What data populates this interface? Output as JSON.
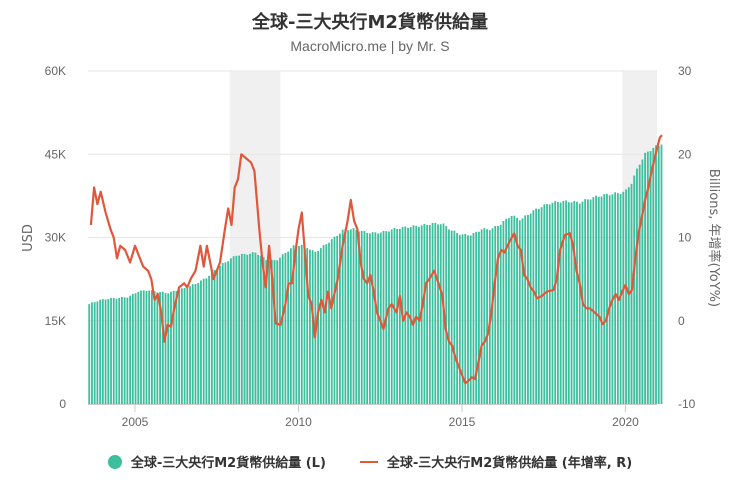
{
  "header": {
    "title": "全球-三大央行M2貨幣供給量",
    "subtitle": "MacroMicro.me | by Mr. S"
  },
  "axes": {
    "left_title": "USD",
    "right_title": "Billions, 年增率(YoY%)",
    "left_ticks": [
      "0",
      "15K",
      "30K",
      "45K",
      "60K"
    ],
    "right_ticks": [
      "-10",
      "0",
      "10",
      "20",
      "30"
    ],
    "x_ticks": [
      "2005",
      "2010",
      "2015",
      "2020"
    ]
  },
  "legend": {
    "items": [
      {
        "label": "全球-三大央行M2貨幣供給量 (L)",
        "color": "#3bbf9c",
        "icon": "circle-marker-icon"
      },
      {
        "label": "全球-三大央行M2貨幣供給量 (年增率, R)",
        "color": "#e0593b",
        "icon": "line-marker-icon"
      }
    ]
  },
  "colors": {
    "bar": "#3bbf9c",
    "line": "#e0573a",
    "recession_band": "#f0f0f0",
    "grid": "#e6e6e6"
  },
  "chart_data": {
    "type": "bar+line",
    "title": "全球-三大央行M2貨幣供給量",
    "subtitle": "MacroMicro.me | by Mr. S",
    "xlabel": "",
    "ylabel_left": "USD",
    "ylabel_right": "Billions, 年增率(YoY%)",
    "ylim_left": [
      0,
      60000
    ],
    "ylim_right": [
      -10,
      30
    ],
    "xlim": [
      2003.55,
      2021.2
    ],
    "grid": true,
    "legend_position": "bottom",
    "recession_bands": [
      [
        2007.9,
        2009.45
      ],
      [
        2019.9,
        2021.2
      ]
    ],
    "series": [
      {
        "name": "全球-三大央行M2貨幣供給量 (L)",
        "type": "bar",
        "axis": "left",
        "x": [
          2003.6,
          2003.9,
          2004.2,
          2004.5,
          2004.8,
          2005.1,
          2005.4,
          2005.7,
          2006.0,
          2006.3,
          2006.6,
          2006.9,
          2007.2,
          2007.5,
          2007.8,
          2008.1,
          2008.4,
          2008.7,
          2009.0,
          2009.3,
          2009.6,
          2009.9,
          2010.2,
          2010.5,
          2010.8,
          2011.1,
          2011.4,
          2011.7,
          2012.0,
          2012.3,
          2012.6,
          2012.9,
          2013.2,
          2013.5,
          2013.8,
          2014.1,
          2014.4,
          2014.7,
          2015.0,
          2015.3,
          2015.6,
          2015.9,
          2016.2,
          2016.5,
          2016.8,
          2017.1,
          2017.4,
          2017.7,
          2018.0,
          2018.3,
          2018.6,
          2018.9,
          2019.2,
          2019.5,
          2019.8,
          2020.0,
          2020.2,
          2020.4,
          2020.6,
          2020.8,
          2021.0,
          2021.1
        ],
        "values": [
          18000,
          18700,
          19000,
          19100,
          19300,
          20300,
          20500,
          20200,
          20000,
          20500,
          21000,
          21800,
          22800,
          24500,
          25700,
          26800,
          27000,
          27300,
          26000,
          25800,
          27200,
          28700,
          28500,
          27300,
          28600,
          30000,
          31500,
          31500,
          31000,
          30800,
          31000,
          31500,
          31800,
          32000,
          32200,
          32500,
          32500,
          31200,
          30500,
          30500,
          31500,
          31500,
          32500,
          34000,
          33200,
          34500,
          35500,
          36200,
          36500,
          36500,
          36300,
          37000,
          37500,
          37800,
          38000,
          38300,
          40000,
          43000,
          45000,
          46000,
          46500,
          47000
        ]
      },
      {
        "name": "全球-三大央行M2貨幣供給量 (年增率, R)",
        "type": "line",
        "axis": "right",
        "x": [
          2003.65,
          2003.75,
          2003.85,
          2003.95,
          2004.1,
          2004.25,
          2004.35,
          2004.45,
          2004.55,
          2004.7,
          2004.85,
          2005.0,
          2005.1,
          2005.25,
          2005.4,
          2005.5,
          2005.6,
          2005.7,
          2005.8,
          2005.9,
          2006.0,
          2006.1,
          2006.2,
          2006.35,
          2006.5,
          2006.6,
          2006.7,
          2006.85,
          2007.0,
          2007.1,
          2007.2,
          2007.3,
          2007.4,
          2007.5,
          2007.6,
          2007.75,
          2007.85,
          2007.95,
          2008.05,
          2008.15,
          2008.25,
          2008.4,
          2008.55,
          2008.65,
          2008.8,
          2008.9,
          2009.0,
          2009.1,
          2009.2,
          2009.3,
          2009.45,
          2009.6,
          2009.7,
          2009.8,
          2009.9,
          2010.0,
          2010.1,
          2010.2,
          2010.3,
          2010.4,
          2010.5,
          2010.6,
          2010.7,
          2010.8,
          2010.9,
          2011.0,
          2011.2,
          2011.35,
          2011.5,
          2011.6,
          2011.7,
          2011.8,
          2011.9,
          2012.0,
          2012.1,
          2012.2,
          2012.3,
          2012.4,
          2012.5,
          2012.6,
          2012.75,
          2012.85,
          2013.0,
          2013.1,
          2013.2,
          2013.3,
          2013.4,
          2013.5,
          2013.6,
          2013.7,
          2013.8,
          2013.9,
          2014.0,
          2014.15,
          2014.3,
          2014.4,
          2014.5,
          2014.6,
          2014.7,
          2014.8,
          2015.0,
          2015.1,
          2015.2,
          2015.3,
          2015.4,
          2015.5,
          2015.6,
          2015.7,
          2015.8,
          2015.9,
          2016.0,
          2016.1,
          2016.2,
          2016.3,
          2016.45,
          2016.6,
          2016.7,
          2016.8,
          2016.9,
          2017.0,
          2017.1,
          2017.2,
          2017.3,
          2017.45,
          2017.6,
          2017.8,
          2017.9,
          2018.0,
          2018.15,
          2018.3,
          2018.4,
          2018.5,
          2018.6,
          2018.7,
          2018.8,
          2018.9,
          2019.0,
          2019.2,
          2019.3,
          2019.4,
          2019.5,
          2019.6,
          2019.7,
          2019.8,
          2019.9,
          2020.0,
          2020.1,
          2020.2,
          2020.3,
          2020.4,
          2020.5,
          2020.6,
          2020.7,
          2020.8,
          2020.85,
          2020.95,
          2021.05,
          2021.12
        ],
        "values": [
          11.5,
          16,
          14,
          15.5,
          13,
          11,
          10,
          7.5,
          9,
          8.5,
          7,
          9,
          8,
          6.5,
          6,
          5,
          2.5,
          3.2,
          1,
          -2.5,
          -0.5,
          -0.7,
          1.5,
          4,
          4.5,
          4,
          5,
          6,
          9,
          6.5,
          9,
          7,
          5,
          6,
          7,
          11,
          13.5,
          11.5,
          16,
          17,
          20,
          19.5,
          19,
          18,
          11,
          7,
          4,
          9,
          5,
          -0.3,
          -0.5,
          2,
          4.5,
          4.5,
          8,
          11,
          13,
          8,
          3,
          2,
          -2,
          1,
          2.5,
          1,
          3.5,
          1.5,
          5,
          9,
          12,
          14.5,
          12,
          11,
          7,
          5,
          4.5,
          5.5,
          3.5,
          1,
          0,
          -1,
          1.5,
          2,
          1,
          3,
          0,
          1,
          0.5,
          -0.5,
          0.5,
          0,
          2,
          4.5,
          5,
          6,
          4.3,
          3,
          -1,
          -2.5,
          -3,
          -4.5,
          -6.5,
          -7.5,
          -7.2,
          -6.8,
          -7,
          -5,
          -3,
          -2.5,
          -1.5,
          1,
          4.5,
          7.5,
          8.5,
          8.2,
          9.5,
          10.5,
          9,
          8.5,
          5.5,
          5,
          4,
          3.5,
          2.7,
          3,
          3.5,
          3.7,
          5,
          8.5,
          10.3,
          10.5,
          9,
          6,
          4.5,
          2,
          1.5,
          1.5,
          1.2,
          0.5,
          -0.4,
          0,
          1.5,
          2.5,
          3.2,
          2.5,
          3.5,
          4.3,
          3.2,
          3.7,
          7.5,
          10.5,
          12.5,
          14.5,
          16,
          18,
          18.8,
          20.5,
          22,
          22.3
        ]
      }
    ]
  }
}
